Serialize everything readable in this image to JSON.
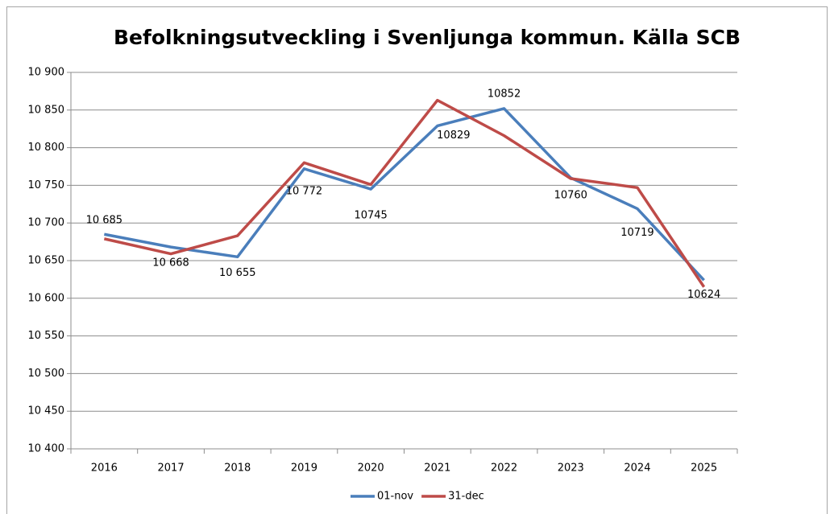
{
  "chart_data": {
    "type": "line",
    "title": "Befolkningsutveckling i Svenljunga kommun. Källa SCB",
    "categories": [
      "2016",
      "2017",
      "2018",
      "2019",
      "2020",
      "2021",
      "2022",
      "2023",
      "2024",
      "2025"
    ],
    "series": [
      {
        "name": "01-nov",
        "color": "#4a7ebb",
        "values": [
          10685,
          10668,
          10655,
          10772,
          10745,
          10829,
          10852,
          10760,
          10719,
          10624
        ],
        "value_labels": [
          "10 685",
          "10 668",
          "10 655",
          "10 772",
          "10745",
          "10829",
          "10852",
          "10760",
          "10719",
          "10624"
        ]
      },
      {
        "name": "31-dec",
        "color": "#be4b48",
        "values": [
          10679,
          10659,
          10683,
          10780,
          10751,
          10863,
          10816,
          10759,
          10747,
          10615
        ]
      }
    ],
    "ylim": [
      10400,
      10900
    ],
    "yticks": [
      {
        "value": 10400,
        "label": "10 400"
      },
      {
        "value": 10450,
        "label": "10 450"
      },
      {
        "value": 10500,
        "label": "10 500"
      },
      {
        "value": 10550,
        "label": "10 550"
      },
      {
        "value": 10600,
        "label": "10 600"
      },
      {
        "value": 10650,
        "label": "10 650"
      },
      {
        "value": 10700,
        "label": "10 700"
      },
      {
        "value": 10750,
        "label": "10 750"
      },
      {
        "value": 10800,
        "label": "10 800"
      },
      {
        "value": 10850,
        "label": "10 850"
      },
      {
        "value": 10900,
        "label": "10 900"
      }
    ],
    "grid": true,
    "legend": "bottom"
  }
}
